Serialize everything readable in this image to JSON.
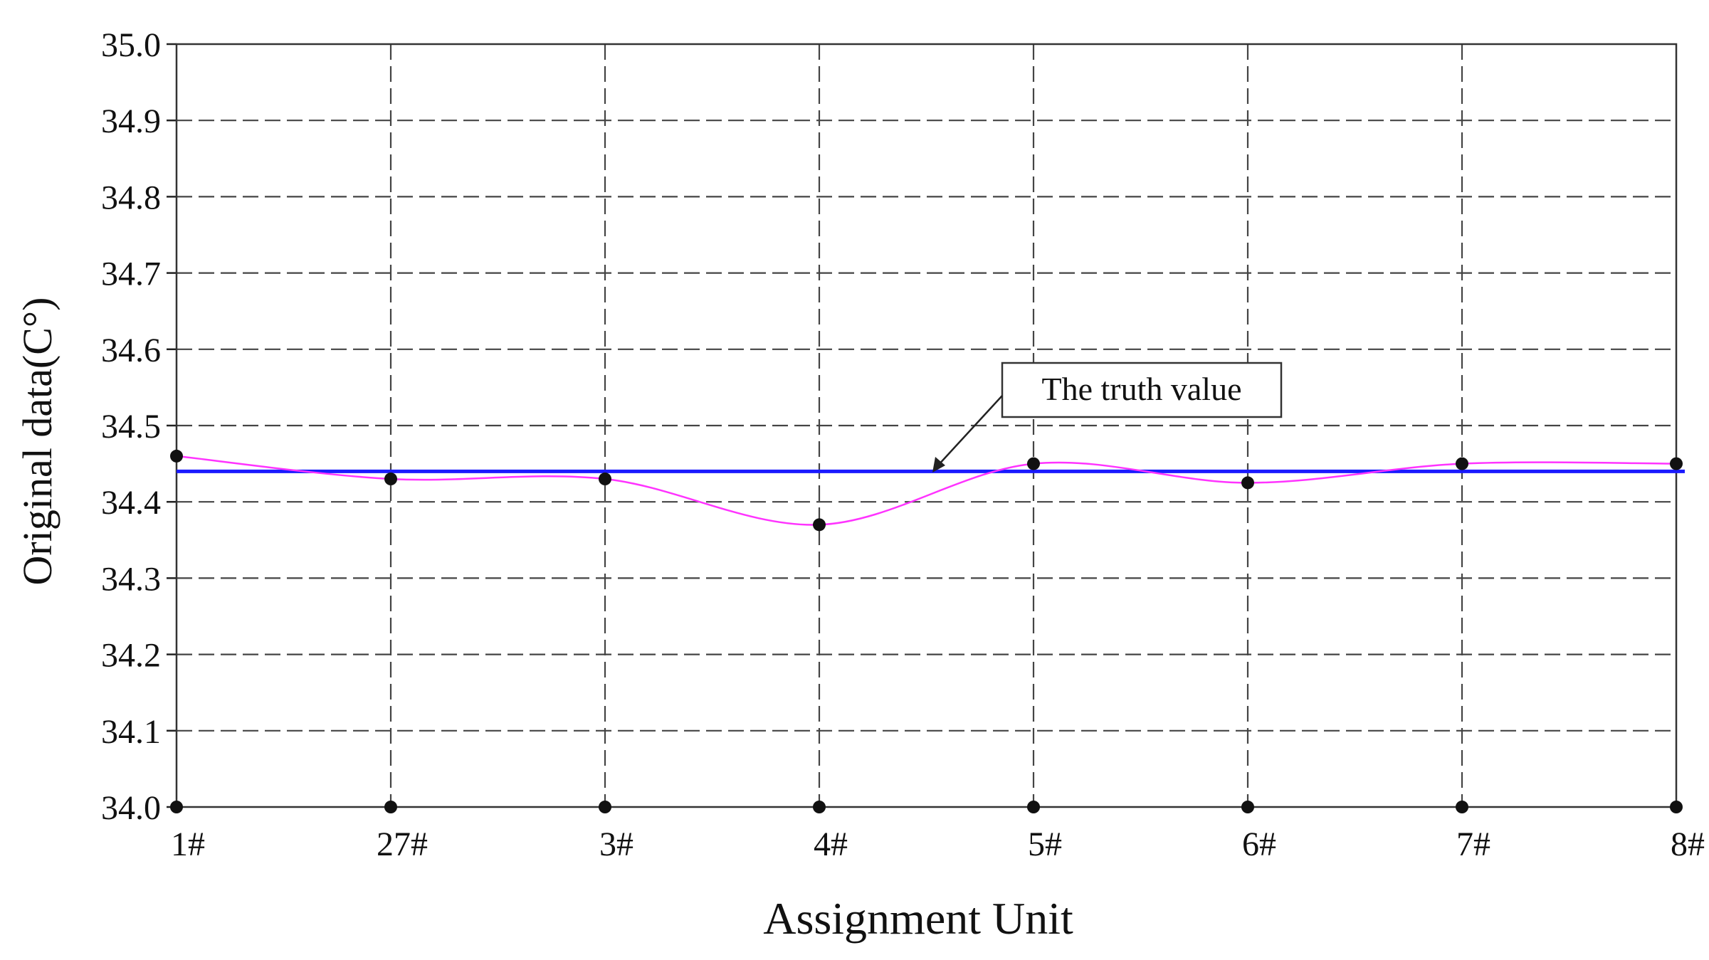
{
  "chart_data": {
    "type": "line",
    "title": "",
    "xlabel": "Assignment Unit",
    "ylabel": "Original data(C°)",
    "categories": [
      "1#",
      "27#",
      "3#",
      "4#",
      "5#",
      "6#",
      "7#",
      "8#"
    ],
    "ylim": [
      34.0,
      35.0
    ],
    "yticks": [
      "34.0",
      "34.1",
      "34.2",
      "34.3",
      "34.4",
      "34.5",
      "34.6",
      "34.7",
      "34.8",
      "34.9",
      "35.0"
    ],
    "grid": true,
    "series": [
      {
        "values": [
          34.46,
          34.43,
          34.43,
          34.37,
          34.45,
          34.425,
          34.45,
          34.45
        ],
        "color": "#ff33ff",
        "marker_color": "#111111",
        "smooth": true
      }
    ],
    "baseline_markers_at": 34.0,
    "reference_line": {
      "value": 34.44,
      "color": "#1a1aff"
    },
    "annotations": [
      {
        "text": "The truth value",
        "points_to": "reference_line"
      }
    ]
  }
}
